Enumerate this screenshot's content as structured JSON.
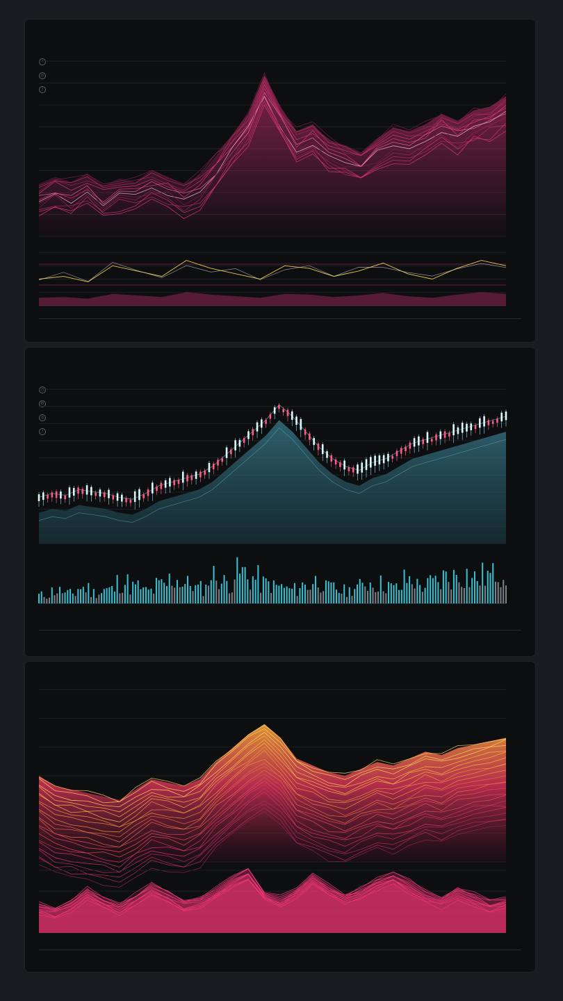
{
  "colors": {
    "background": "#1a1c20",
    "panel": "#0d0e10",
    "magenta": "#e0357a",
    "pink": "#ff3d7f",
    "cyan": "#3fd6e8",
    "orange": "#f2a33a",
    "yellow": "#e8c84a",
    "grid": "#22252a"
  },
  "panels": [
    {
      "accent": "#e0357a",
      "header": {
        "ticker": "",
        "subtitle": "",
        "pair": "",
        "values": "",
        "right": ""
      },
      "footer": []
    },
    {
      "accent": "#3fd6e8",
      "header": {
        "ticker": "",
        "subtitle": "",
        "pair": "",
        "values": "",
        "right": ""
      },
      "footer": []
    },
    {
      "accent": "#f2a33a",
      "header": {
        "ticker": "",
        "subtitle": "",
        "pair": "",
        "values": "",
        "right": ""
      },
      "footer": []
    }
  ],
  "chart_data": [
    {
      "type": "line",
      "series_count": 12,
      "x": [
        0,
        1,
        2,
        3,
        4,
        5,
        6,
        7,
        8,
        9,
        10,
        11,
        12,
        13,
        14,
        15,
        16,
        17,
        18,
        19,
        20,
        21,
        22,
        23,
        24,
        25,
        26,
        27,
        28,
        29
      ],
      "values": [
        30,
        34,
        31,
        36,
        29,
        33,
        31,
        38,
        34,
        30,
        35,
        46,
        58,
        70,
        92,
        74,
        60,
        64,
        55,
        52,
        48,
        56,
        62,
        60,
        64,
        70,
        66,
        72,
        74,
        80
      ],
      "indicator_values": [
        20,
        22,
        18,
        30,
        26,
        22,
        34,
        28,
        24,
        20,
        30,
        28,
        22,
        26,
        32,
        24,
        20,
        28,
        34,
        30
      ]
    },
    {
      "type": "bar",
      "values": [
        22,
        24,
        23,
        26,
        25,
        24,
        22,
        21,
        24,
        28,
        30,
        32,
        34,
        38,
        44,
        50,
        56,
        62,
        70,
        64,
        56,
        48,
        42,
        38,
        36,
        40,
        42,
        46,
        50,
        52,
        54,
        56,
        58,
        60,
        62,
        64
      ],
      "volume": [
        12,
        18,
        14,
        22,
        16,
        20,
        30,
        24,
        18,
        26,
        34,
        28,
        22,
        40,
        30,
        44,
        36,
        28,
        24,
        20,
        26,
        32,
        22,
        18,
        24,
        30,
        28,
        22,
        34,
        26,
        30,
        38,
        42,
        36,
        40,
        48
      ]
    },
    {
      "type": "area",
      "values": [
        50,
        44,
        42,
        40,
        38,
        36,
        42,
        48,
        46,
        44,
        48,
        58,
        66,
        74,
        80,
        72,
        60,
        56,
        52,
        50,
        54,
        58,
        56,
        60,
        64,
        62,
        66,
        68,
        70,
        72
      ],
      "lower_values": [
        12,
        10,
        14,
        22,
        16,
        12,
        18,
        24,
        20,
        14,
        16,
        22,
        28,
        34,
        20,
        16,
        22,
        30,
        24,
        18,
        22,
        28,
        32,
        26,
        20,
        16,
        22,
        18,
        14,
        16
      ]
    }
  ]
}
